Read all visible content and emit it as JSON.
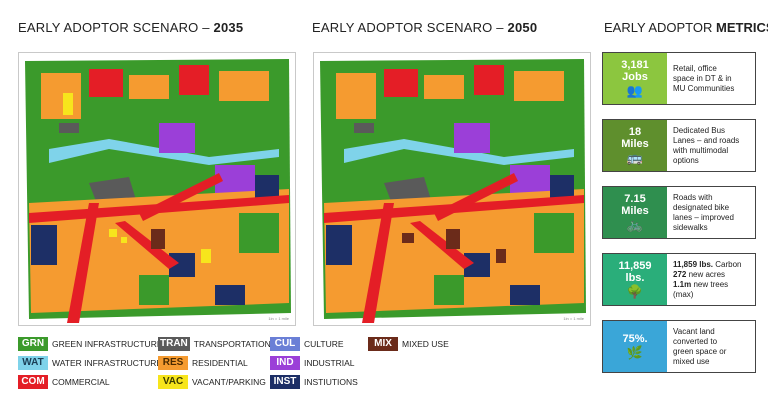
{
  "titles": {
    "scenario_2035_prefix": "EARLY ADOPTOR SCENARO – ",
    "scenario_2035_year": "2035",
    "scenario_2050_prefix": "EARLY ADOPTOR SCENARO – ",
    "scenario_2050_year": "2050",
    "metrics_prefix": "EARLY ADOPTOR ",
    "metrics_bold": "METRICS"
  },
  "map_scale_label": "1in = 1 mile",
  "legend": [
    {
      "code": "GRN",
      "label": "GREEN INFRASTRUCTURE",
      "bg": "#3b9a2b",
      "fg": "#ffffff"
    },
    {
      "code": "WAT",
      "label": "WATER INFRASTRUCTURE",
      "bg": "#7fd3ea",
      "fg": "#1a3e55"
    },
    {
      "code": "COM",
      "label": "COMMERCIAL",
      "bg": "#e41e26",
      "fg": "#ffffff"
    },
    {
      "code": "TRAN",
      "label": "TRANSPORTATION",
      "bg": "#5a5a5a",
      "fg": "#ffffff"
    },
    {
      "code": "RES",
      "label": "RESIDENTIAL",
      "bg": "#f59b30",
      "fg": "#4a2a00"
    },
    {
      "code": "VAC",
      "label": "VACANT/PARKING",
      "bg": "#f7e51c",
      "fg": "#3b3b00"
    },
    {
      "code": "CUL",
      "label": "CULTURE",
      "bg": "#6a7fd6",
      "fg": "#ffffff"
    },
    {
      "code": "IND",
      "label": "INDUSTRIAL",
      "bg": "#9b3fd8",
      "fg": "#ffffff"
    },
    {
      "code": "INST",
      "label": "INSTIUTIONS",
      "bg": "#1d2f66",
      "fg": "#ffffff"
    },
    {
      "code": "MIX",
      "label": "MIXED USE",
      "bg": "#6b2b1a",
      "fg": "#ffffff"
    }
  ],
  "metrics": [
    {
      "value": "3,181",
      "unit": "Jobs",
      "icon": "people-icon",
      "glyph": "👥",
      "color": "#8cc63f",
      "lines": [
        "Retail, office",
        "space in DT & in",
        "MU Communities"
      ]
    },
    {
      "value": "18",
      "unit": "Miles",
      "icon": "bus-icon",
      "glyph": "🚌",
      "color": "#5f8f2d",
      "lines": [
        "Dedicated Bus",
        "Lanes – and roads",
        "with multimodal",
        "options"
      ]
    },
    {
      "value": "7.15",
      "unit": "Miles",
      "icon": "bicycle-icon",
      "glyph": "🚲",
      "color": "#2f8f4f",
      "lines": [
        "Roads with",
        "designated bike",
        "lanes – improved",
        "sidewalks"
      ]
    },
    {
      "value": "11,859",
      "unit": "lbs.",
      "icon": "tree-icon",
      "glyph": "🌳",
      "color": "#2aae7a",
      "lines_rich": [
        {
          "b": "11,859 lbs.",
          "t": " Carbon"
        },
        {
          "b": "272",
          "t": " new acres"
        },
        {
          "b": "1.1m",
          "t": " new trees"
        },
        {
          "b": "",
          "t": "(max)"
        }
      ]
    },
    {
      "value": "75%.",
      "unit": "",
      "icon": "grass-icon",
      "glyph": "🌿",
      "color": "#3aa6d8",
      "lines": [
        "Vacant land",
        "converted to",
        "green space or",
        "mixed use"
      ]
    }
  ]
}
